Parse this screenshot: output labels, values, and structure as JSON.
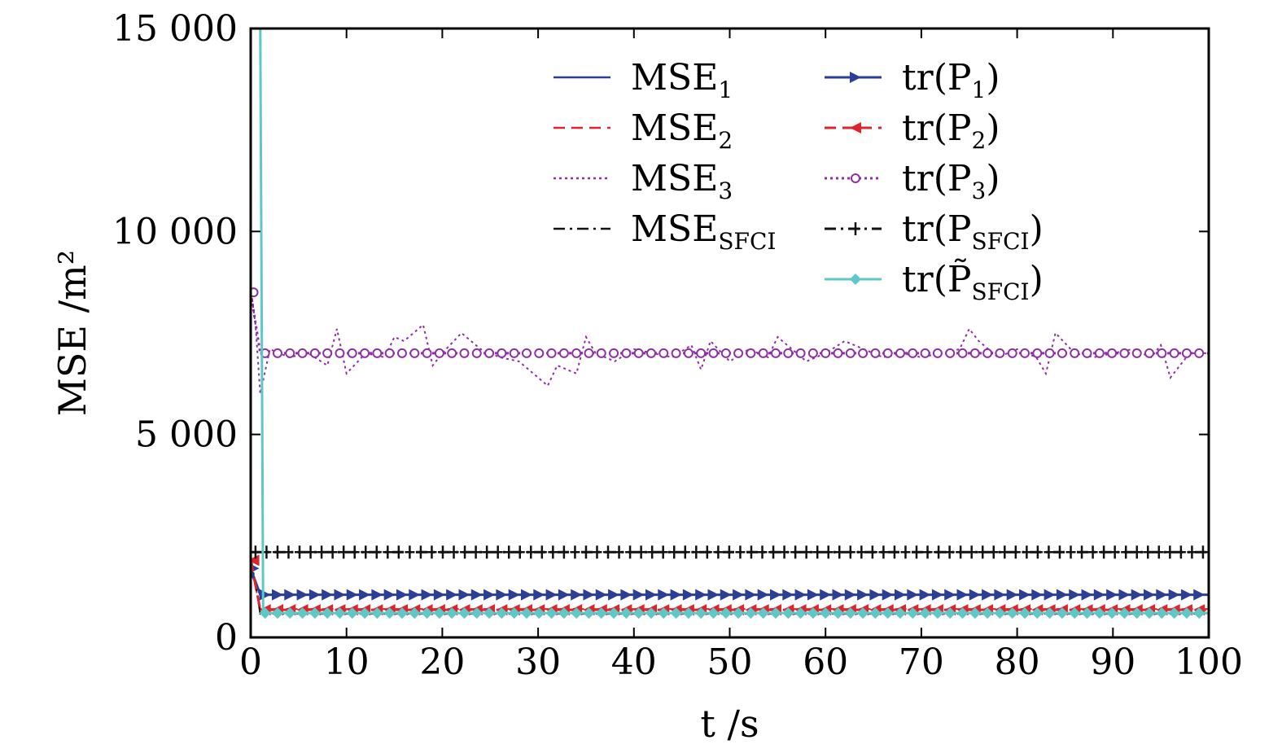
{
  "chart_data": {
    "type": "line",
    "xlabel": "t /s",
    "ylabel": "MSE /m²",
    "xlim": [
      0,
      100
    ],
    "ylim": [
      0,
      15000
    ],
    "x_ticks": [
      "0",
      "10",
      "20",
      "30",
      "40",
      "50",
      "60",
      "70",
      "80",
      "90",
      "100"
    ],
    "y_ticks": [
      "0",
      "5 000",
      "10 000",
      "15 000"
    ],
    "grid": false,
    "legend_position": "top-right",
    "series": [
      {
        "name": "MSE1",
        "label_main": "MSE",
        "label_sub": "1",
        "color": "#2b3f96",
        "style": "solid",
        "marker": "none",
        "x": [
          0,
          1,
          10,
          20,
          30,
          40,
          50,
          60,
          70,
          80,
          90,
          100
        ],
        "y": [
          1600,
          1050,
          1050,
          1050,
          1050,
          1050,
          1050,
          1050,
          1050,
          1050,
          1050,
          1050
        ]
      },
      {
        "name": "MSE2",
        "label_main": "MSE",
        "label_sub": "2",
        "color": "#e0242b",
        "style": "dashed",
        "marker": "none",
        "x": [
          0,
          1,
          10,
          20,
          30,
          40,
          50,
          60,
          70,
          80,
          90,
          100
        ],
        "y": [
          1800,
          700,
          700,
          700,
          700,
          700,
          700,
          700,
          700,
          700,
          700,
          700
        ]
      },
      {
        "name": "MSE3",
        "label_main": "MSE",
        "label_sub": "3",
        "color": "#8e2fa6",
        "style": "dotted",
        "marker": "none",
        "x": [
          0,
          0.5,
          1,
          2,
          4,
          6,
          8,
          9,
          10,
          12,
          14,
          15,
          16,
          17,
          18,
          19,
          20,
          22,
          24,
          26,
          28,
          30,
          31,
          32,
          34,
          35,
          36,
          38,
          40,
          42,
          44,
          46,
          47,
          48,
          50,
          52,
          54,
          55,
          56,
          58,
          60,
          62,
          64,
          66,
          68,
          70,
          72,
          74,
          75,
          76,
          78,
          80,
          82,
          83,
          84,
          86,
          88,
          90,
          92,
          94,
          95,
          96,
          98,
          100
        ],
        "y": [
          8600,
          7700,
          6000,
          7100,
          6900,
          7000,
          6700,
          7600,
          6500,
          7000,
          6900,
          7400,
          7300,
          7500,
          7700,
          6700,
          7000,
          7500,
          7100,
          6900,
          6800,
          6400,
          6200,
          6700,
          6500,
          7400,
          7000,
          6800,
          7100,
          7000,
          6900,
          7200,
          6600,
          7300,
          6800,
          7100,
          6900,
          7400,
          7200,
          6800,
          7000,
          7300,
          7100,
          6900,
          7000,
          6900,
          7000,
          7100,
          7600,
          7300,
          6900,
          7100,
          6900,
          6500,
          7500,
          7000,
          6900,
          7000,
          7100,
          6900,
          7200,
          6400,
          7000,
          7000
        ]
      },
      {
        "name": "MSESFCI",
        "label_main": "MSE",
        "label_sub": "SFCI",
        "color": "#111111",
        "style": "dashdot",
        "marker": "none",
        "x": [
          0,
          1,
          10,
          20,
          30,
          40,
          50,
          60,
          70,
          80,
          90,
          100
        ],
        "y": [
          2000,
          580,
          580,
          580,
          580,
          580,
          580,
          580,
          580,
          580,
          580,
          580
        ]
      },
      {
        "name": "tr(P1)",
        "label_main": "tr(P",
        "label_sub": "1",
        "label_tail": ")",
        "color": "#2b3f96",
        "style": "solid",
        "marker": "triangle",
        "x": [
          0,
          1,
          100
        ],
        "y": [
          1700,
          1050,
          1050
        ]
      },
      {
        "name": "tr(P2)",
        "label_main": "tr(P",
        "label_sub": "2",
        "label_tail": ")",
        "color": "#e0242b",
        "style": "dashed",
        "marker": "triangle-left",
        "x": [
          0,
          1,
          100
        ],
        "y": [
          1900,
          680,
          680
        ]
      },
      {
        "name": "tr(P3)",
        "label_main": "tr(P",
        "label_sub": "3",
        "label_tail": ")",
        "color": "#8e2fa6",
        "style": "dotted",
        "marker": "circle",
        "x": [
          0,
          1,
          100
        ],
        "y": [
          8500,
          7000,
          7000
        ]
      },
      {
        "name": "tr(PSFCI)",
        "label_main": "tr(P",
        "label_sub": "SFCI",
        "label_tail": ")",
        "color": "#111111",
        "style": "dashdot",
        "marker": "plus",
        "x": [
          0,
          100
        ],
        "y": [
          2100,
          2100
        ]
      },
      {
        "name": "tr(P~SFCI)",
        "label_main": "tr(P̃",
        "label_sub": "SFCI",
        "label_tail": ")",
        "color": "#5ec8c9",
        "style": "solid",
        "marker": "diamond",
        "x": [
          0,
          1,
          1.3,
          100
        ],
        "y": [
          15000,
          15000,
          600,
          600
        ]
      }
    ]
  }
}
